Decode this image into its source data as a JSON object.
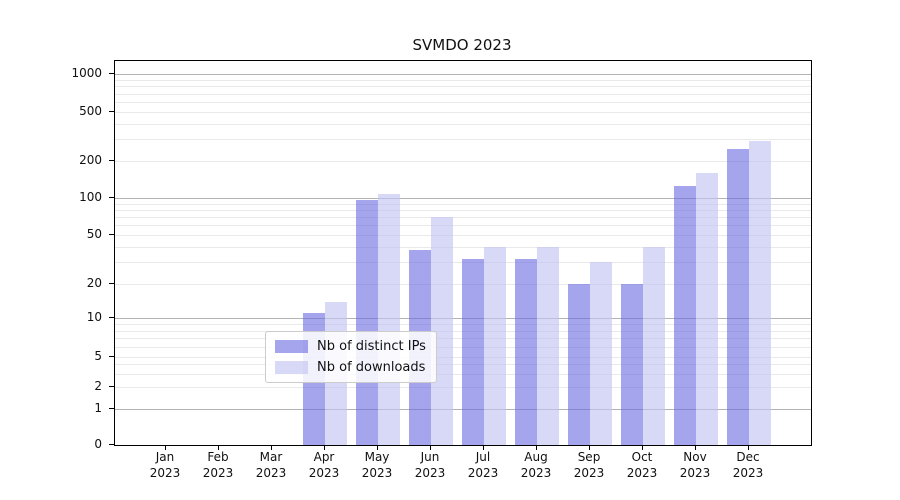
{
  "chart_data": {
    "type": "bar",
    "title": "SVMDO 2023",
    "x": [
      "Jan 2023",
      "Feb 2023",
      "Mar 2023",
      "Apr 2023",
      "May 2023",
      "Jun 2023",
      "Jul 2023",
      "Aug 2023",
      "Sep 2023",
      "Oct 2023",
      "Nov 2023",
      "Dec 2023"
    ],
    "series": [
      {
        "name": "Nb of distinct IPs",
        "color": "rgba(105,105,225,0.60)",
        "values": [
          0,
          0,
          0,
          11,
          97,
          38,
          32,
          32,
          20,
          20,
          125,
          250
        ]
      },
      {
        "name": "Nb of downloads",
        "color": "rgba(195,195,242,0.65)",
        "values": [
          0,
          0,
          0,
          14,
          108,
          70,
          40,
          40,
          30,
          40,
          160,
          290
        ]
      }
    ],
    "y_ticks": [
      0,
      1,
      2,
      5,
      10,
      20,
      50,
      100,
      200,
      500,
      1000
    ],
    "y_scale": "symlog (log above 1, linear 0-1)",
    "ylim": [
      0,
      1300
    ],
    "grid": "on",
    "legend_position": "lower center"
  },
  "colors": {
    "bar_distinct_ips": "rgba(105,105,225,0.60)",
    "bar_downloads": "rgba(195,195,242,0.65)",
    "major_gridline": "#b3b3b3",
    "minor_gridline": "#e9e9e9",
    "axis_spine": "#000000"
  }
}
